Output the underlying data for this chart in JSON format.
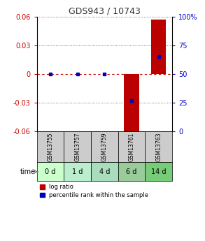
{
  "title": "GDS943 / 10743",
  "samples": [
    "GSM13755",
    "GSM13757",
    "GSM13759",
    "GSM13761",
    "GSM13763"
  ],
  "time_labels": [
    "0 d",
    "1 d",
    "4 d",
    "6 d",
    "14 d"
  ],
  "log_ratios": [
    0.0,
    0.0,
    0.0,
    -0.065,
    0.057
  ],
  "percentile_ranks": [
    50,
    50,
    50,
    27,
    65
  ],
  "ylim_left": [
    -0.06,
    0.06
  ],
  "ylim_right": [
    0,
    100
  ],
  "yticks_left": [
    -0.06,
    -0.03,
    0,
    0.03,
    0.06
  ],
  "yticks_right": [
    0,
    25,
    50,
    75,
    100
  ],
  "bar_color": "#bb0000",
  "percentile_color": "#0000bb",
  "grid_dotted_color": "#555555",
  "zero_line_color": "#cc0000",
  "title_color": "#333333",
  "left_tick_color": "#cc0000",
  "right_tick_color": "#0000cc",
  "sample_bg_color": "#cccccc",
  "time_bg_colors": [
    "#ccffcc",
    "#bbeecc",
    "#aaddbb",
    "#99cc99",
    "#77cc77"
  ],
  "bar_width": 0.55,
  "legend_log_label": "log ratio",
  "legend_pct_label": "percentile rank within the sample",
  "yticklabels_left": [
    "-0.06",
    "-0.03",
    "0",
    "0.03",
    "0.06"
  ],
  "yticklabels_right": [
    "0",
    "25",
    "50",
    "75",
    "100%"
  ]
}
